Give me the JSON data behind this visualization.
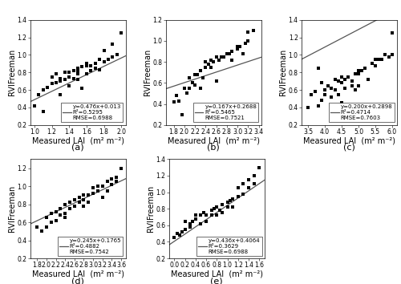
{
  "subplots": [
    {
      "label": "(a)",
      "equation": "y=0.476x+0.013",
      "r2": "R²=0.5295",
      "rmse": "RMSE=0.6988",
      "xlim": [
        0.95,
        2.05
      ],
      "ylim": [
        0.2,
        1.4
      ],
      "xticks": [
        1.0,
        1.2,
        1.4,
        1.6,
        1.8,
        2.0
      ],
      "yticks": [
        0.2,
        0.4,
        0.6,
        0.8,
        1.0,
        1.2,
        1.4
      ],
      "slope": 0.476,
      "intercept": 0.013,
      "scatter_x": [
        1.0,
        1.05,
        1.1,
        1.1,
        1.15,
        1.2,
        1.2,
        1.25,
        1.25,
        1.3,
        1.3,
        1.3,
        1.35,
        1.35,
        1.4,
        1.4,
        1.4,
        1.45,
        1.45,
        1.5,
        1.5,
        1.5,
        1.5,
        1.55,
        1.55,
        1.6,
        1.6,
        1.6,
        1.65,
        1.65,
        1.7,
        1.7,
        1.75,
        1.75,
        1.8,
        1.8,
        1.85,
        1.9,
        1.9,
        1.95,
        2.0
      ],
      "scatter_y": [
        0.42,
        0.55,
        0.6,
        0.35,
        0.63,
        0.67,
        0.75,
        0.68,
        0.78,
        0.7,
        0.73,
        0.55,
        0.72,
        0.8,
        0.75,
        0.8,
        0.65,
        0.82,
        0.73,
        0.85,
        0.78,
        0.72,
        0.82,
        0.87,
        0.62,
        0.88,
        0.78,
        0.9,
        0.88,
        0.82,
        0.9,
        0.85,
        0.95,
        0.83,
        0.92,
        1.05,
        0.95,
        0.98,
        1.12,
        1.0,
        1.25
      ]
    },
    {
      "label": "(b)",
      "equation": "y=0.167x+0.2688",
      "r2": "R²=0.5465",
      "rmse": "RMSE=0.7521",
      "xlim": [
        1.65,
        3.45
      ],
      "ylim": [
        0.2,
        1.2
      ],
      "xticks": [
        1.8,
        2.0,
        2.2,
        2.4,
        2.6,
        2.8,
        3.0,
        3.2,
        3.4
      ],
      "yticks": [
        0.2,
        0.4,
        0.6,
        0.8,
        1.0,
        1.2
      ],
      "slope": 0.167,
      "intercept": 0.2688,
      "scatter_x": [
        1.8,
        1.85,
        1.9,
        1.95,
        2.0,
        2.05,
        2.1,
        2.1,
        2.15,
        2.2,
        2.2,
        2.25,
        2.3,
        2.3,
        2.35,
        2.4,
        2.4,
        2.45,
        2.5,
        2.5,
        2.55,
        2.6,
        2.6,
        2.65,
        2.7,
        2.75,
        2.8,
        2.85,
        2.9,
        2.9,
        3.0,
        3.0,
        3.05,
        3.1,
        3.15,
        3.2,
        3.2,
        3.3
      ],
      "scatter_y": [
        0.42,
        0.48,
        0.43,
        0.3,
        0.55,
        0.5,
        0.55,
        0.65,
        0.6,
        0.68,
        0.58,
        0.68,
        0.72,
        0.55,
        0.65,
        0.75,
        0.8,
        0.78,
        0.82,
        0.75,
        0.8,
        0.85,
        0.62,
        0.82,
        0.85,
        0.85,
        0.88,
        0.88,
        0.9,
        0.82,
        0.92,
        0.95,
        0.95,
        0.88,
        0.98,
        1.0,
        1.08,
        1.1
      ]
    },
    {
      "label": "(c)",
      "equation": "y=0.200x+0.2898",
      "r2": "R²=0.4714",
      "rmse": "RMSE=0.7603",
      "xlim": [
        3.3,
        6.15
      ],
      "ylim": [
        0.2,
        1.4
      ],
      "xticks": [
        3.5,
        4.0,
        4.5,
        5.0,
        5.5,
        6.0
      ],
      "yticks": [
        0.2,
        0.4,
        0.6,
        0.8,
        1.0,
        1.2,
        1.4
      ],
      "slope": 0.2,
      "intercept": 0.2898,
      "scatter_x": [
        3.5,
        3.6,
        3.7,
        3.8,
        3.8,
        3.9,
        3.9,
        4.0,
        4.0,
        4.1,
        4.2,
        4.2,
        4.3,
        4.3,
        4.4,
        4.4,
        4.5,
        4.5,
        4.5,
        4.6,
        4.6,
        4.7,
        4.8,
        4.8,
        4.9,
        4.9,
        5.0,
        5.0,
        5.0,
        5.1,
        5.2,
        5.3,
        5.4,
        5.5,
        5.5,
        5.6,
        5.7,
        5.8,
        5.9,
        6.0,
        6.0
      ],
      "scatter_y": [
        0.4,
        0.55,
        0.58,
        0.85,
        0.42,
        0.48,
        0.68,
        0.55,
        0.6,
        0.65,
        0.52,
        0.62,
        0.6,
        0.72,
        0.7,
        0.55,
        0.68,
        0.75,
        0.45,
        0.72,
        0.62,
        0.75,
        0.7,
        0.65,
        0.78,
        0.6,
        0.82,
        0.78,
        0.65,
        0.82,
        0.85,
        0.72,
        0.9,
        0.88,
        0.95,
        0.95,
        0.95,
        1.0,
        0.98,
        1.25,
        1.0
      ]
    },
    {
      "label": "(d)",
      "equation": "y=0.245x+0.1765",
      "r2": "R²=0.4882",
      "rmse": "RMSE=0.7542",
      "xlim": [
        1.65,
        3.7
      ],
      "ylim": [
        0.2,
        1.3
      ],
      "xticks": [
        1.8,
        2.0,
        2.2,
        2.4,
        2.6,
        2.8,
        3.0,
        3.2,
        3.4,
        3.6
      ],
      "yticks": [
        0.2,
        0.4,
        0.6,
        0.8,
        1.0,
        1.2
      ],
      "slope": 0.245,
      "intercept": 0.1765,
      "scatter_x": [
        1.8,
        1.9,
        2.0,
        2.0,
        2.1,
        2.1,
        2.2,
        2.2,
        2.3,
        2.3,
        2.4,
        2.4,
        2.4,
        2.5,
        2.5,
        2.6,
        2.6,
        2.7,
        2.7,
        2.8,
        2.8,
        2.8,
        2.9,
        2.9,
        3.0,
        3.0,
        3.1,
        3.1,
        3.2,
        3.2,
        3.3,
        3.3,
        3.4,
        3.4,
        3.5,
        3.5,
        3.6
      ],
      "scatter_y": [
        0.55,
        0.5,
        0.65,
        0.55,
        0.6,
        0.7,
        0.62,
        0.72,
        0.68,
        0.75,
        0.7,
        0.8,
        0.65,
        0.75,
        0.82,
        0.78,
        0.85,
        0.82,
        0.88,
        0.85,
        0.9,
        0.78,
        0.9,
        0.82,
        0.92,
        0.98,
        0.95,
        1.0,
        1.0,
        0.88,
        1.05,
        0.95,
        1.08,
        1.02,
        1.1,
        1.05,
        1.2
      ]
    },
    {
      "label": "(e)",
      "equation": "y=0.436x+0.4064",
      "r2": "R²=0.3629",
      "rmse": "RMSE=0.6988",
      "xlim": [
        -0.1,
        1.7
      ],
      "ylim": [
        0.2,
        1.4
      ],
      "xticks": [
        0.0,
        0.2,
        0.4,
        0.6,
        0.8,
        1.0,
        1.2,
        1.4,
        1.6
      ],
      "yticks": [
        0.2,
        0.4,
        0.6,
        0.8,
        1.0,
        1.2,
        1.4
      ],
      "slope": 0.436,
      "intercept": 0.4064,
      "scatter_x": [
        0.0,
        0.05,
        0.1,
        0.15,
        0.2,
        0.2,
        0.3,
        0.3,
        0.35,
        0.4,
        0.4,
        0.5,
        0.5,
        0.55,
        0.6,
        0.6,
        0.7,
        0.7,
        0.75,
        0.8,
        0.8,
        0.85,
        0.9,
        0.9,
        1.0,
        1.0,
        1.05,
        1.1,
        1.1,
        1.2,
        1.2,
        1.3,
        1.3,
        1.4,
        1.4,
        1.5,
        1.5,
        1.6
      ],
      "scatter_y": [
        0.45,
        0.5,
        0.48,
        0.52,
        0.55,
        0.65,
        0.62,
        0.58,
        0.65,
        0.68,
        0.72,
        0.72,
        0.62,
        0.75,
        0.72,
        0.65,
        0.72,
        0.78,
        0.8,
        0.82,
        0.72,
        0.78,
        0.85,
        0.75,
        0.88,
        0.82,
        0.9,
        0.92,
        0.82,
        0.95,
        1.05,
        0.98,
        1.1,
        1.05,
        1.15,
        1.2,
        1.1,
        1.3
      ]
    }
  ],
  "scatter_color": "black",
  "scatter_marker": "s",
  "scatter_size": 7,
  "line_color": "#555555",
  "ylabel": "RVIFreeman",
  "xlabel": "Measured LAI  (m² m⁻²)",
  "legend_fontsize": 5.0,
  "tick_fontsize": 5.5,
  "label_fontsize": 7,
  "sublabel_fontsize": 8
}
